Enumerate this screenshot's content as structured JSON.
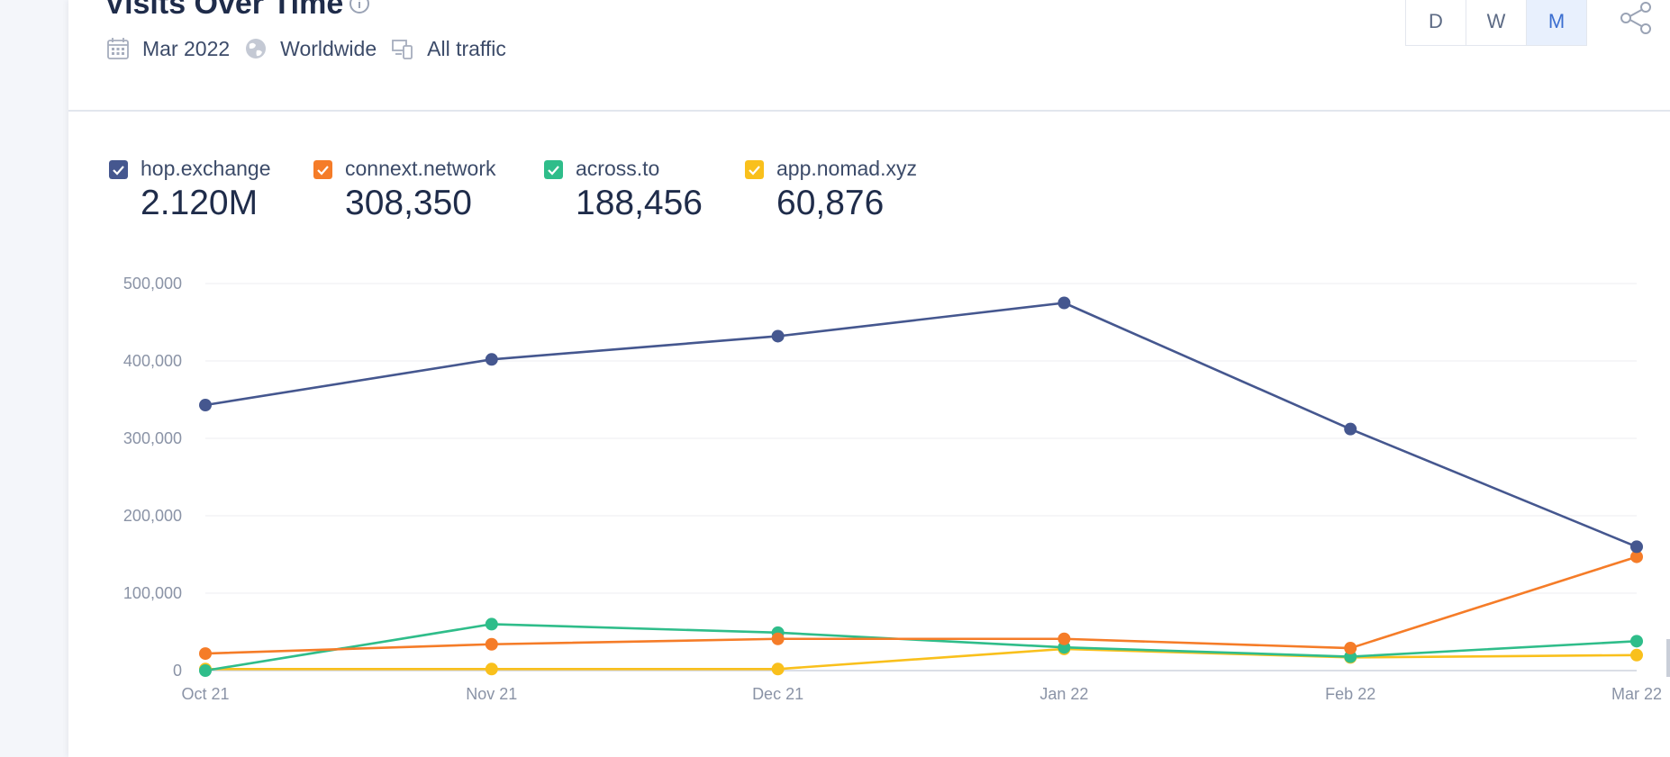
{
  "widget": {
    "title": "Visits Over Time",
    "date": "Mar 2022",
    "region": "Worldwide",
    "traffic": "All traffic",
    "granularity": [
      "D",
      "W",
      "M"
    ],
    "active_granularity": "M",
    "icons": {
      "info": "info-icon",
      "date": "calendar-icon",
      "region": "globe-icon",
      "traffic": "devices-icon",
      "share": "share-icon"
    }
  },
  "legend": [
    {
      "name": "hop.exchange",
      "value": "2.120M",
      "color": "#45578f"
    },
    {
      "name": "connext.network",
      "value": "308,350",
      "color": "#f57c28"
    },
    {
      "name": "across.to",
      "value": "188,456",
      "color": "#2fbd8a"
    },
    {
      "name": "app.nomad.xyz",
      "value": "60,876",
      "color": "#f9c01c"
    }
  ],
  "chart_data": {
    "type": "line",
    "categories": [
      "Oct 21",
      "Nov 21",
      "Dec 21",
      "Jan 22",
      "Feb 22",
      "Mar 22"
    ],
    "ylim": [
      0,
      500000
    ],
    "yticks": [
      "0",
      "100,000",
      "200,000",
      "300,000",
      "400,000",
      "500,000"
    ],
    "grid": true,
    "series": [
      {
        "name": "hop.exchange",
        "color": "#45578f",
        "values": [
          343000,
          402000,
          432000,
          475000,
          312000,
          160000
        ]
      },
      {
        "name": "connext.network",
        "color": "#f57c28",
        "values": [
          22000,
          34000,
          41000,
          41000,
          29000,
          147000
        ]
      },
      {
        "name": "across.to",
        "color": "#2fbd8a",
        "values": [
          0,
          60000,
          49000,
          30000,
          18000,
          38000
        ]
      },
      {
        "name": "app.nomad.xyz",
        "color": "#f9c01c",
        "values": [
          2000,
          2000,
          2000,
          28000,
          17000,
          20000
        ]
      }
    ]
  }
}
